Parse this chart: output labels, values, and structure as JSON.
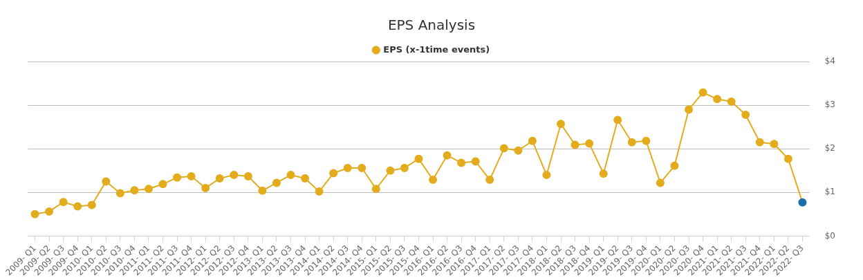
{
  "chart_data": {
    "type": "line",
    "title": "EPS Analysis",
    "categories": [
      "2009- Q1",
      "2009- Q2",
      "2009- Q3",
      "2009- Q4",
      "2010- Q1",
      "2010- Q2",
      "2010- Q3",
      "2010- Q4",
      "2011- Q1",
      "2011- Q2",
      "2011- Q3",
      "2011- Q4",
      "2012- Q1",
      "2012- Q2",
      "2012- Q3",
      "2012- Q4",
      "2013- Q1",
      "2013- Q2",
      "2013- Q3",
      "2013- Q4",
      "2014- Q1",
      "2014- Q2",
      "2014- Q3",
      "2014- Q4",
      "2015- Q1",
      "2015- Q2",
      "2015- Q3",
      "2015- Q4",
      "2016- Q1",
      "2016- Q2",
      "2016- Q3",
      "2016- Q4",
      "2017- Q1",
      "2017- Q2",
      "2017- Q3",
      "2017- Q4",
      "2018- Q1",
      "2018- Q2",
      "2018- Q3",
      "2018- Q4",
      "2019- Q1",
      "2019- Q2",
      "2019- Q3",
      "2019- Q4",
      "2020- Q1",
      "2020- Q2",
      "2020- Q3",
      "2020- Q4",
      "2021- Q1",
      "2021- Q2",
      "2021- Q3",
      "2021- Q4",
      "2022- Q1",
      "2022- Q2",
      "2022- Q3"
    ],
    "series": [
      {
        "name": "EPS (x-1time events)",
        "color": "#e2ac1d",
        "colors": [
          "#e2ac1d",
          "#e2ac1d",
          "#e2ac1d",
          "#e2ac1d",
          "#e2ac1d",
          "#e2ac1d",
          "#e2ac1d",
          "#e2ac1d",
          "#e2ac1d",
          "#e2ac1d",
          "#e2ac1d",
          "#e2ac1d",
          "#e2ac1d",
          "#e2ac1d",
          "#e2ac1d",
          "#e2ac1d",
          "#e2ac1d",
          "#e2ac1d",
          "#e2ac1d",
          "#e2ac1d",
          "#e2ac1d",
          "#e2ac1d",
          "#e2ac1d",
          "#e2ac1d",
          "#e2ac1d",
          "#e2ac1d",
          "#e2ac1d",
          "#e2ac1d",
          "#e2ac1d",
          "#e2ac1d",
          "#e2ac1d",
          "#e2ac1d",
          "#e2ac1d",
          "#e2ac1d",
          "#e2ac1d",
          "#e2ac1d",
          "#e2ac1d",
          "#e2ac1d",
          "#e2ac1d",
          "#e2ac1d",
          "#e2ac1d",
          "#e2ac1d",
          "#e2ac1d",
          "#e2ac1d",
          "#e2ac1d",
          "#e2ac1d",
          "#e2ac1d",
          "#e2ac1d",
          "#e2ac1d",
          "#e2ac1d",
          "#e2ac1d",
          "#e2ac1d",
          "#e2ac1d",
          "#e2ac1d",
          "#1a6fa8"
        ],
        "values": [
          0.5,
          0.56,
          0.78,
          0.68,
          0.71,
          1.25,
          0.98,
          1.05,
          1.08,
          1.19,
          1.34,
          1.37,
          1.1,
          1.32,
          1.4,
          1.37,
          1.04,
          1.22,
          1.4,
          1.32,
          1.02,
          1.44,
          1.56,
          1.56,
          1.08,
          1.5,
          1.56,
          1.77,
          1.29,
          1.85,
          1.68,
          1.71,
          1.29,
          2.01,
          1.96,
          2.18,
          1.4,
          2.57,
          2.09,
          2.12,
          1.43,
          2.66,
          2.15,
          2.18,
          1.22,
          1.61,
          2.9,
          3.29,
          3.14,
          3.08,
          2.78,
          2.15,
          2.11,
          1.77,
          0.77
        ]
      }
    ],
    "ylim": [
      0,
      4
    ],
    "yticks": [
      {
        "value": 0,
        "label": "$0"
      },
      {
        "value": 1,
        "label": "$1"
      },
      {
        "value": 2,
        "label": "$2"
      },
      {
        "value": 3,
        "label": "$3"
      },
      {
        "value": 4,
        "label": "$4"
      }
    ],
    "grid": "y",
    "legend": "top",
    "marker": "circle",
    "line_style": "solid"
  }
}
